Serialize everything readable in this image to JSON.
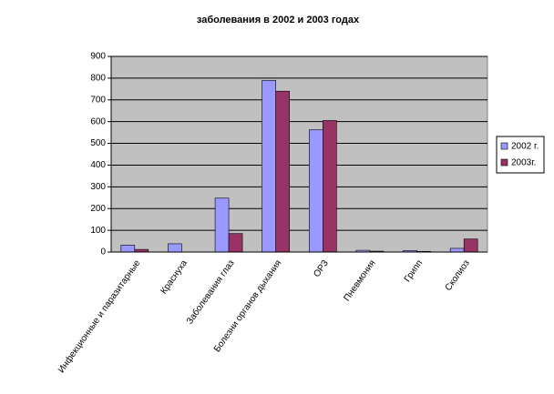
{
  "chart_data": {
    "type": "bar",
    "title": "заболевания в 2002 и 2003 годах",
    "categories": [
      "Инфекционные и паразитарные",
      "Краснуха",
      "Заболевания глаз",
      "Болезни органов дыхания",
      "ОРЗ",
      "Пневмония",
      "Грипп",
      "Сколиоз"
    ],
    "series": [
      {
        "name": "2002 г.",
        "color": "#9999ff",
        "values": [
          32,
          38,
          248,
          790,
          562,
          8,
          7,
          17
        ]
      },
      {
        "name": "2003г.",
        "color": "#993366",
        "values": [
          12,
          0,
          85,
          740,
          605,
          4,
          3,
          60
        ]
      }
    ],
    "ylim": [
      0,
      900
    ],
    "yticks": [
      0,
      100,
      200,
      300,
      400,
      500,
      600,
      700,
      800,
      900
    ],
    "grid": true,
    "legend": "right"
  }
}
